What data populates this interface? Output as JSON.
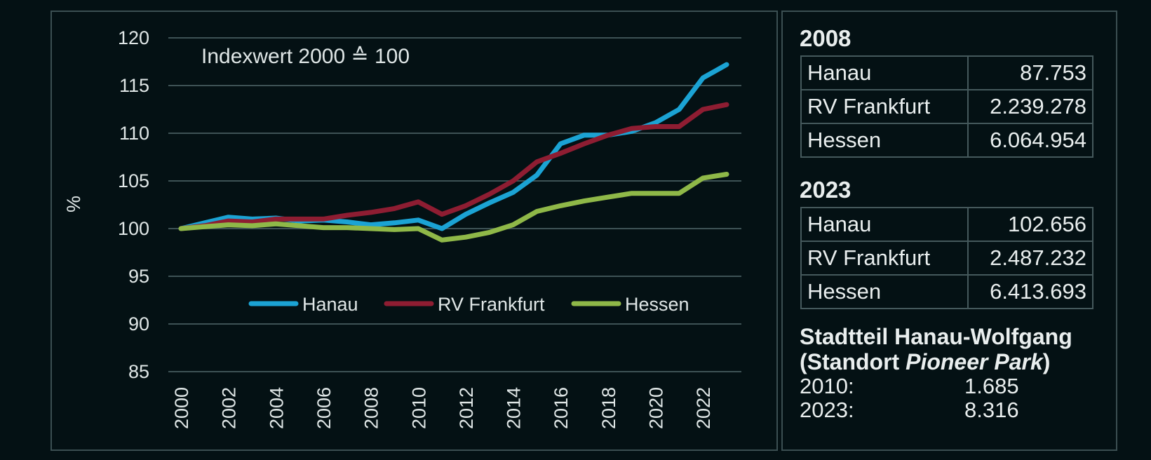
{
  "chart_data": {
    "type": "line",
    "ylabel": "%",
    "annotation": "Indexwert 2000 ≙ 100",
    "ylim": [
      85,
      120
    ],
    "yticks": [
      85,
      90,
      95,
      100,
      105,
      110,
      115,
      120
    ],
    "xticks": [
      2000,
      2002,
      2004,
      2006,
      2008,
      2010,
      2012,
      2014,
      2016,
      2018,
      2020,
      2022
    ],
    "legend_position": "center",
    "x": [
      2000,
      2001,
      2002,
      2003,
      2004,
      2005,
      2006,
      2007,
      2008,
      2009,
      2010,
      2011,
      2012,
      2013,
      2014,
      2015,
      2016,
      2017,
      2018,
      2019,
      2020,
      2021,
      2022,
      2023
    ],
    "series": [
      {
        "name": "Hanau",
        "color": "#1ba3d4",
        "values": [
          100.0,
          100.6,
          101.2,
          101.0,
          101.1,
          100.8,
          100.9,
          100.7,
          100.4,
          100.6,
          100.9,
          100.0,
          101.5,
          102.7,
          103.8,
          105.6,
          108.9,
          109.8,
          109.8,
          110.2,
          111.1,
          112.5,
          115.8,
          117.2
        ]
      },
      {
        "name": "RV Frankfurt",
        "color": "#8e1d32",
        "values": [
          100.0,
          100.3,
          100.8,
          100.7,
          101.0,
          101.0,
          101.0,
          101.4,
          101.7,
          102.1,
          102.8,
          101.5,
          102.4,
          103.6,
          105.0,
          107.0,
          107.9,
          108.9,
          109.8,
          110.5,
          110.7,
          110.7,
          112.5,
          113.0
        ]
      },
      {
        "name": "Hessen",
        "color": "#8fb848",
        "values": [
          100.0,
          100.2,
          100.4,
          100.3,
          100.5,
          100.3,
          100.1,
          100.1,
          100.0,
          99.9,
          100.0,
          98.8,
          99.1,
          99.6,
          100.4,
          101.8,
          102.4,
          102.9,
          103.3,
          103.7,
          103.7,
          103.7,
          105.3,
          105.7
        ]
      }
    ]
  },
  "side": {
    "tables": [
      {
        "year": "2008",
        "rows": [
          {
            "name": "Hanau",
            "value": "87.753"
          },
          {
            "name": "RV Frankfurt",
            "value": "2.239.278"
          },
          {
            "name": "Hessen",
            "value": "6.064.954"
          }
        ]
      },
      {
        "year": "2023",
        "rows": [
          {
            "name": "Hanau",
            "value": "102.656"
          },
          {
            "name": "RV Frankfurt",
            "value": "2.487.232"
          },
          {
            "name": "Hessen",
            "value": "6.413.693"
          }
        ]
      }
    ],
    "district": {
      "title_line1": "Stadtteil Hanau-Wolfgang",
      "title_line2_prefix": "(Standort ",
      "title_line2_italic": "Pioneer Park",
      "title_line2_suffix": ")",
      "rows": [
        {
          "label": "2010:",
          "value": "1.685"
        },
        {
          "label": "2023:",
          "value": "8.316"
        }
      ]
    }
  }
}
